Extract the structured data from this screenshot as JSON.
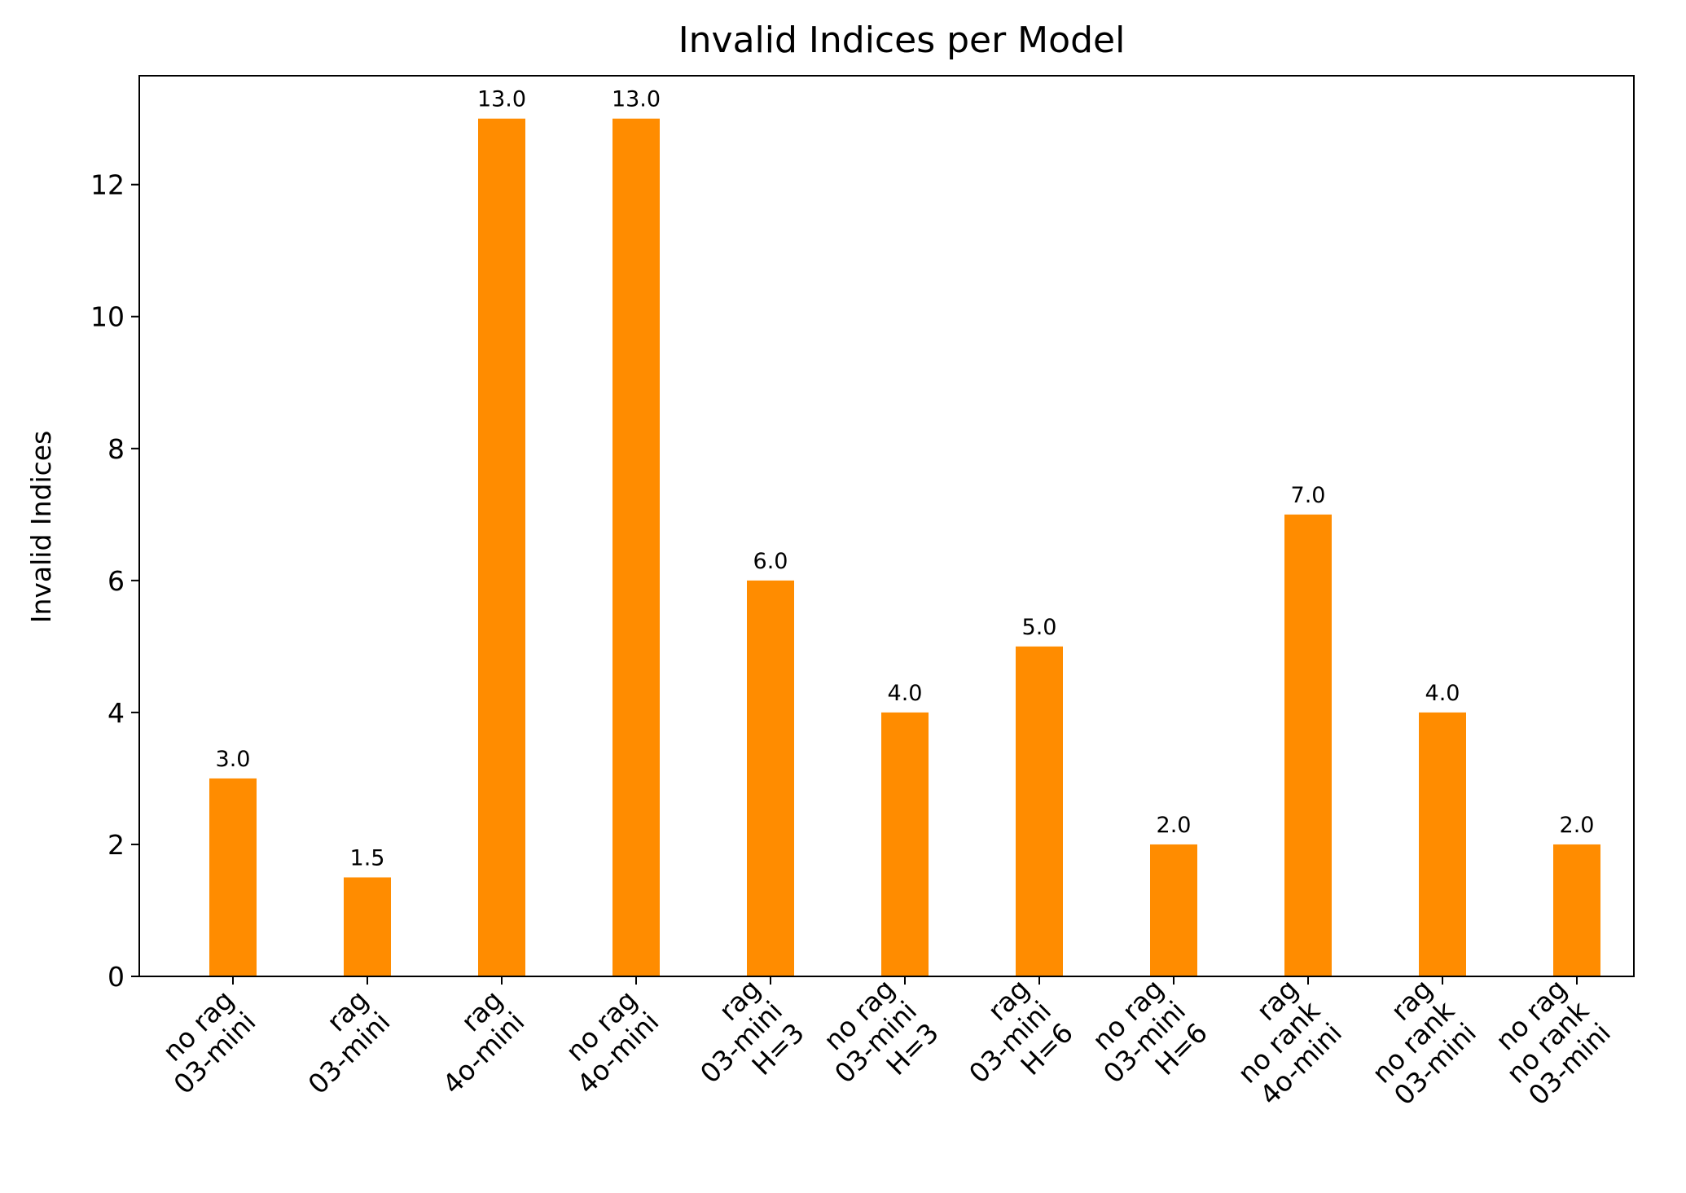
{
  "chart_data": {
    "type": "bar",
    "title": "Invalid Indices per Model",
    "xlabel": "",
    "ylabel": "Invalid Indices",
    "ylim": [
      0,
      13.65
    ],
    "yticks": [
      0,
      2,
      4,
      6,
      8,
      10,
      12
    ],
    "grid": false,
    "legend": "none",
    "bar_color": "#ff8c00",
    "categories": [
      [
        "no rag",
        "03-mini"
      ],
      [
        "rag",
        "03-mini"
      ],
      [
        "rag",
        "4o-mini"
      ],
      [
        "no rag",
        "4o-mini"
      ],
      [
        "rag",
        "03-mini",
        "H=3"
      ],
      [
        "no rag",
        "03-mini",
        "H=3"
      ],
      [
        "rag",
        "03-mini",
        "H=6"
      ],
      [
        "no rag",
        "03-mini",
        "H=6"
      ],
      [
        "rag",
        "no rank",
        "4o-mini"
      ],
      [
        "rag",
        "no rank",
        "03-mini"
      ],
      [
        "no rag",
        "no rank",
        "03-mini"
      ]
    ],
    "values": [
      3.0,
      1.5,
      13.0,
      13.0,
      6.0,
      4.0,
      5.0,
      2.0,
      7.0,
      4.0,
      2.0
    ],
    "data_labels": [
      "3.0",
      "1.5",
      "13.0",
      "13.0",
      "6.0",
      "4.0",
      "5.0",
      "2.0",
      "7.0",
      "4.0",
      "2.0"
    ]
  }
}
